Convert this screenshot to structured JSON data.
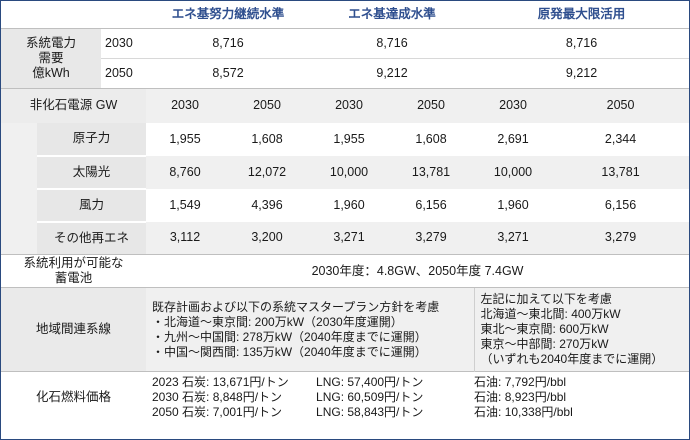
{
  "scenarios": [
    "エネ基努力継続水準",
    "エネ基達成水準",
    "原発最大限活用"
  ],
  "demand": {
    "label_lines": [
      "系統電力",
      "需要",
      "億kWh"
    ],
    "rows": [
      {
        "year": "2030",
        "values": [
          "8,716",
          "8,716",
          "8,716"
        ]
      },
      {
        "year": "2050",
        "values": [
          "8,572",
          "9,212",
          "9,212"
        ]
      }
    ]
  },
  "capacity": {
    "header": "非化石電源 GW",
    "years": [
      "2030",
      "2050",
      "2030",
      "2050",
      "2030",
      "2050"
    ],
    "rows": [
      {
        "label": "原子力",
        "values": [
          "1,955",
          "1,608",
          "1,955",
          "1,608",
          "2,691",
          "2,344"
        ]
      },
      {
        "label": "太陽光",
        "values": [
          "8,760",
          "12,072",
          "10,000",
          "13,781",
          "10,000",
          "13,781"
        ]
      },
      {
        "label": "風力",
        "values": [
          "1,549",
          "4,396",
          "1,960",
          "6,156",
          "1,960",
          "6,156"
        ]
      },
      {
        "label": "その他再エネ",
        "values": [
          "3,112",
          "3,200",
          "3,271",
          "3,279",
          "3,271",
          "3,279"
        ]
      }
    ]
  },
  "storage": {
    "label_lines": [
      "系統利用が可能な",
      "蓄電池"
    ],
    "value": "2030年度：4.8GW、2050年度 7.4GW"
  },
  "interconnect": {
    "label": "地域間連系線",
    "left_lines": [
      "既存計画および以下の系統マスタープラン方針を考慮",
      "・北海道～東京間: 200万kW（2030年度運開）",
      "・九州～中国間: 278万kW（2040年度までに運開）",
      "・中国～関西間: 135万kW（2040年度までに運開）"
    ],
    "right_lines": [
      "左記に加えて以下を考慮",
      "北海道～東北間: 400万kW",
      "東北～東京間: 600万kW",
      "東京～中部間: 270万kW",
      "（いずれも2040年度までに運開）"
    ]
  },
  "fuel": {
    "label": "化石燃料価格",
    "rows": [
      {
        "coal": "2023 石炭: 13,671円/トン",
        "lng": "LNG: 57,400円/トン",
        "oil": "石油: 7,792円/bbl"
      },
      {
        "coal": "2030 石炭: 8,848円/トン",
        "lng": "LNG: 60,509円/トン",
        "oil": "石油: 8,923円/bbl"
      },
      {
        "coal": "2050 石炭: 7,001円/トン",
        "lng": "LNG: 58,843円/トン",
        "oil": "石油: 10,338円/bbl"
      }
    ]
  }
}
